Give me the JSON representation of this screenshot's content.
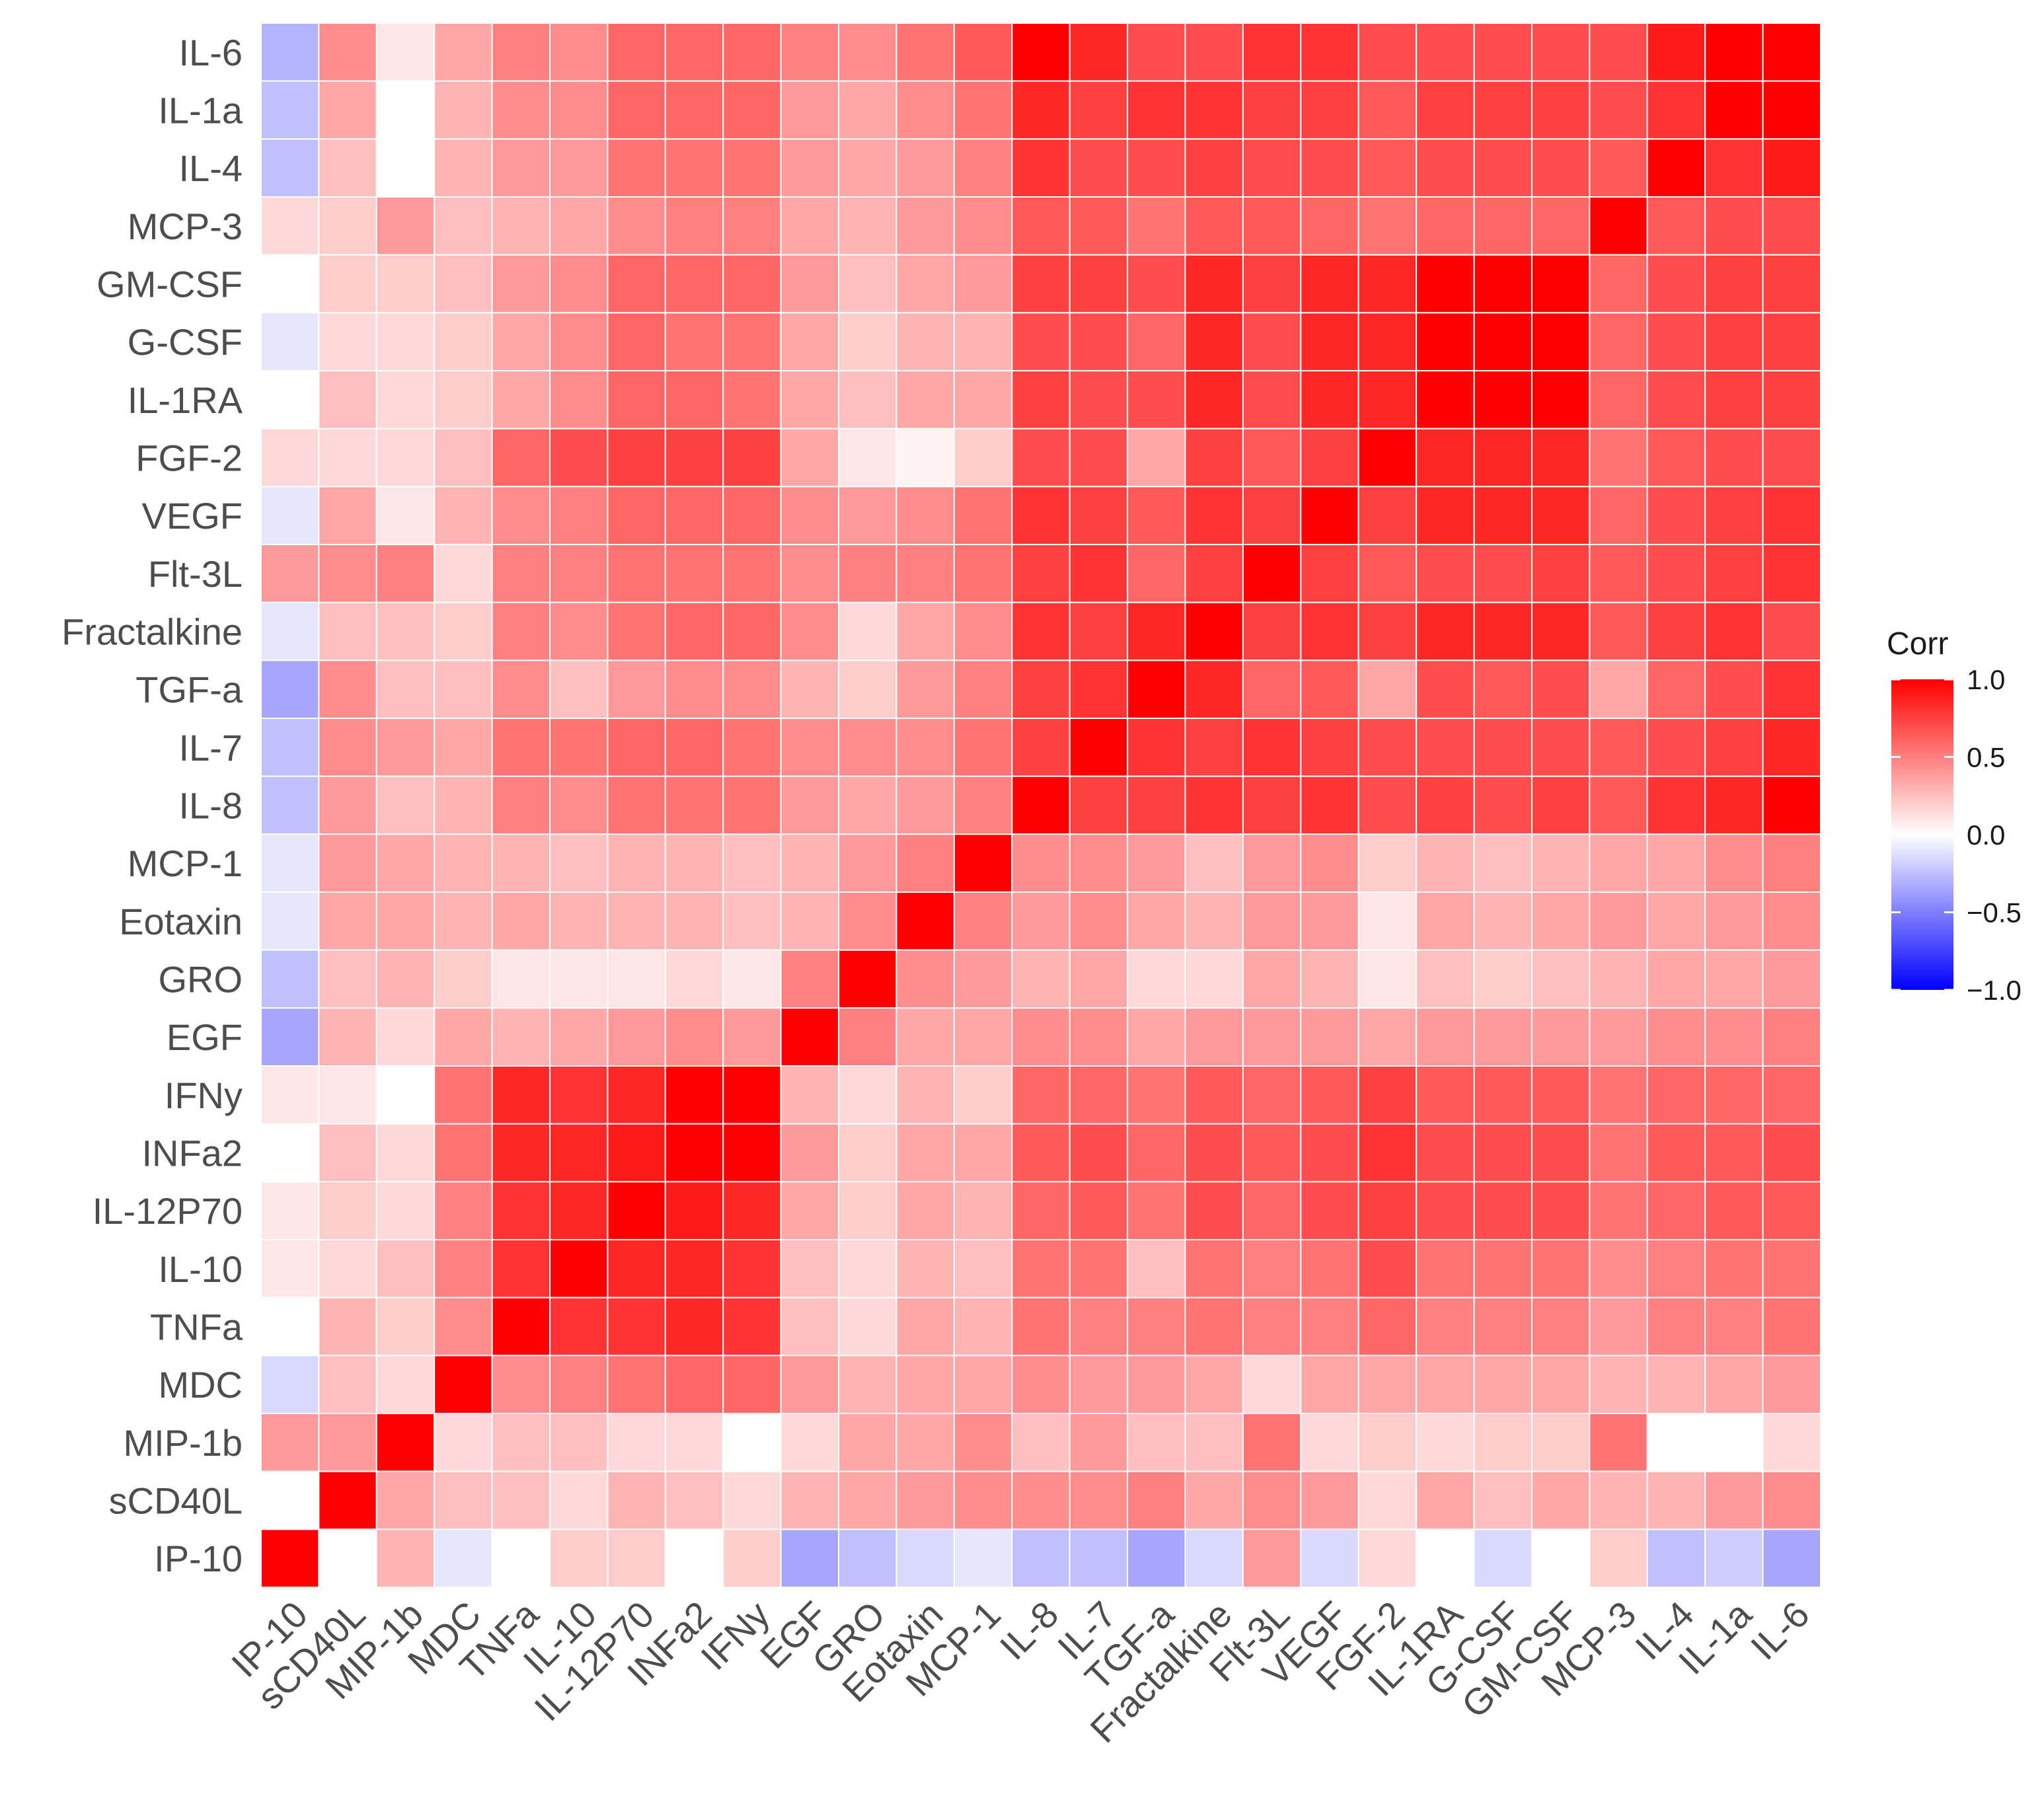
{
  "chart_data": {
    "type": "heatmap",
    "title": "",
    "xlabel": "",
    "ylabel": "",
    "x_categories": [
      "IP-10",
      "sCD40L",
      "MIP-1b",
      "MDC",
      "TNFa",
      "IL-10",
      "IL-12P70",
      "INFa2",
      "IFNy",
      "EGF",
      "GRO",
      "Eotaxin",
      "MCP-1",
      "IL-8",
      "IL-7",
      "TGF-a",
      "Fractalkine",
      "Flt-3L",
      "VEGF",
      "FGF-2",
      "IL-1RA",
      "G-CSF",
      "GM-CSF",
      "MCP-3",
      "IL-4",
      "IL-1a",
      "IL-6"
    ],
    "y_categories": [
      "IL-6",
      "IL-1a",
      "IL-4",
      "MCP-3",
      "GM-CSF",
      "G-CSF",
      "IL-1RA",
      "FGF-2",
      "VEGF",
      "Flt-3L",
      "Fractalkine",
      "TGF-a",
      "IL-7",
      "IL-8",
      "MCP-1",
      "Eotaxin",
      "GRO",
      "EGF",
      "IFNy",
      "INFa2",
      "IL-12P70",
      "IL-10",
      "TNFa",
      "MDC",
      "MIP-1b",
      "sCD40L",
      "IP-10"
    ],
    "values": [
      [
        -0.3,
        0.45,
        0.1,
        0.35,
        0.5,
        0.45,
        0.6,
        0.6,
        0.6,
        0.5,
        0.45,
        0.55,
        0.65,
        1.0,
        0.85,
        0.7,
        0.7,
        0.8,
        0.8,
        0.7,
        0.7,
        0.7,
        0.7,
        0.7,
        0.9,
        1.0,
        1.0
      ],
      [
        -0.25,
        0.35,
        0.0,
        0.3,
        0.45,
        0.45,
        0.6,
        0.6,
        0.6,
        0.4,
        0.35,
        0.45,
        0.55,
        0.85,
        0.75,
        0.8,
        0.8,
        0.75,
        0.75,
        0.65,
        0.75,
        0.75,
        0.75,
        0.7,
        0.8,
        1.0,
        1.0
      ],
      [
        -0.25,
        0.25,
        0.0,
        0.3,
        0.4,
        0.4,
        0.55,
        0.55,
        0.55,
        0.4,
        0.35,
        0.4,
        0.5,
        0.8,
        0.7,
        0.7,
        0.75,
        0.7,
        0.7,
        0.65,
        0.7,
        0.7,
        0.7,
        0.65,
        1.0,
        0.8,
        0.9
      ],
      [
        0.15,
        0.2,
        0.4,
        0.25,
        0.3,
        0.35,
        0.45,
        0.5,
        0.5,
        0.35,
        0.3,
        0.4,
        0.45,
        0.65,
        0.65,
        0.55,
        0.65,
        0.65,
        0.6,
        0.55,
        0.6,
        0.6,
        0.6,
        1.0,
        0.65,
        0.7,
        0.7
      ],
      [
        0.0,
        0.2,
        0.2,
        0.25,
        0.4,
        0.45,
        0.6,
        0.6,
        0.6,
        0.4,
        0.25,
        0.35,
        0.4,
        0.75,
        0.75,
        0.7,
        0.85,
        0.75,
        0.85,
        0.85,
        1.0,
        1.0,
        1.0,
        0.6,
        0.7,
        0.75,
        0.75
      ],
      [
        -0.1,
        0.15,
        0.15,
        0.2,
        0.35,
        0.45,
        0.6,
        0.55,
        0.55,
        0.35,
        0.2,
        0.3,
        0.3,
        0.7,
        0.7,
        0.6,
        0.85,
        0.7,
        0.85,
        0.85,
        1.0,
        1.0,
        1.0,
        0.6,
        0.7,
        0.75,
        0.75
      ],
      [
        0.0,
        0.25,
        0.15,
        0.2,
        0.35,
        0.45,
        0.6,
        0.6,
        0.55,
        0.35,
        0.25,
        0.35,
        0.35,
        0.75,
        0.7,
        0.7,
        0.85,
        0.7,
        0.85,
        0.85,
        1.0,
        1.0,
        1.0,
        0.6,
        0.7,
        0.75,
        0.75
      ],
      [
        0.15,
        0.15,
        0.15,
        0.25,
        0.6,
        0.7,
        0.75,
        0.75,
        0.75,
        0.35,
        0.1,
        0.05,
        0.2,
        0.7,
        0.7,
        0.35,
        0.75,
        0.65,
        0.75,
        1.0,
        0.85,
        0.85,
        0.85,
        0.55,
        0.65,
        0.7,
        0.7
      ],
      [
        -0.1,
        0.35,
        0.1,
        0.3,
        0.45,
        0.5,
        0.6,
        0.6,
        0.6,
        0.45,
        0.4,
        0.45,
        0.55,
        0.8,
        0.75,
        0.65,
        0.8,
        0.75,
        1.0,
        0.75,
        0.85,
        0.85,
        0.85,
        0.6,
        0.7,
        0.75,
        0.8
      ],
      [
        0.4,
        0.45,
        0.5,
        0.15,
        0.5,
        0.5,
        0.55,
        0.55,
        0.55,
        0.45,
        0.5,
        0.5,
        0.55,
        0.75,
        0.8,
        0.6,
        0.75,
        1.0,
        0.75,
        0.65,
        0.7,
        0.7,
        0.75,
        0.65,
        0.7,
        0.75,
        0.8
      ],
      [
        -0.1,
        0.25,
        0.25,
        0.2,
        0.5,
        0.45,
        0.55,
        0.6,
        0.6,
        0.45,
        0.15,
        0.35,
        0.45,
        0.8,
        0.75,
        0.85,
        1.0,
        0.75,
        0.8,
        0.75,
        0.85,
        0.85,
        0.85,
        0.65,
        0.75,
        0.8,
        0.7
      ],
      [
        -0.35,
        0.45,
        0.25,
        0.25,
        0.45,
        0.25,
        0.4,
        0.45,
        0.45,
        0.3,
        0.2,
        0.4,
        0.5,
        0.75,
        0.8,
        1.0,
        0.85,
        0.6,
        0.65,
        0.35,
        0.7,
        0.65,
        0.7,
        0.35,
        0.6,
        0.7,
        0.8
      ],
      [
        -0.25,
        0.45,
        0.4,
        0.35,
        0.55,
        0.55,
        0.6,
        0.6,
        0.55,
        0.45,
        0.45,
        0.45,
        0.55,
        0.75,
        1.0,
        0.8,
        0.75,
        0.8,
        0.75,
        0.7,
        0.7,
        0.7,
        0.7,
        0.65,
        0.7,
        0.75,
        0.85
      ],
      [
        -0.25,
        0.4,
        0.25,
        0.3,
        0.5,
        0.45,
        0.55,
        0.55,
        0.55,
        0.4,
        0.35,
        0.4,
        0.5,
        1.0,
        0.75,
        0.75,
        0.8,
        0.75,
        0.8,
        0.7,
        0.75,
        0.7,
        0.75,
        0.65,
        0.8,
        0.85,
        1.0
      ],
      [
        -0.1,
        0.4,
        0.35,
        0.3,
        0.3,
        0.25,
        0.3,
        0.3,
        0.25,
        0.3,
        0.4,
        0.5,
        1.0,
        0.45,
        0.45,
        0.4,
        0.25,
        0.4,
        0.45,
        0.2,
        0.3,
        0.25,
        0.3,
        0.35,
        0.35,
        0.45,
        0.5
      ],
      [
        -0.1,
        0.35,
        0.35,
        0.3,
        0.35,
        0.3,
        0.3,
        0.3,
        0.25,
        0.3,
        0.45,
        1.0,
        0.5,
        0.4,
        0.45,
        0.35,
        0.3,
        0.4,
        0.4,
        0.1,
        0.35,
        0.3,
        0.35,
        0.4,
        0.35,
        0.4,
        0.45
      ],
      [
        -0.25,
        0.25,
        0.3,
        0.2,
        0.1,
        0.1,
        0.1,
        0.15,
        0.1,
        0.5,
        1.0,
        0.45,
        0.4,
        0.3,
        0.35,
        0.15,
        0.15,
        0.35,
        0.3,
        0.1,
        0.25,
        0.2,
        0.25,
        0.3,
        0.35,
        0.35,
        0.4
      ],
      [
        -0.35,
        0.3,
        0.15,
        0.35,
        0.3,
        0.35,
        0.4,
        0.45,
        0.4,
        1.0,
        0.5,
        0.35,
        0.35,
        0.45,
        0.45,
        0.35,
        0.4,
        0.4,
        0.4,
        0.35,
        0.4,
        0.4,
        0.4,
        0.4,
        0.45,
        0.45,
        0.5
      ],
      [
        0.1,
        0.1,
        0.0,
        0.55,
        0.85,
        0.8,
        0.85,
        1.0,
        1.0,
        0.3,
        0.15,
        0.3,
        0.2,
        0.6,
        0.6,
        0.55,
        0.65,
        0.6,
        0.65,
        0.75,
        0.65,
        0.65,
        0.65,
        0.55,
        0.6,
        0.6,
        0.6
      ],
      [
        0.0,
        0.25,
        0.15,
        0.55,
        0.85,
        0.85,
        0.9,
        1.0,
        1.0,
        0.4,
        0.2,
        0.35,
        0.35,
        0.65,
        0.7,
        0.6,
        0.7,
        0.65,
        0.7,
        0.8,
        0.7,
        0.7,
        0.7,
        0.55,
        0.65,
        0.65,
        0.7
      ],
      [
        0.1,
        0.2,
        0.15,
        0.5,
        0.8,
        0.85,
        1.0,
        0.9,
        0.85,
        0.35,
        0.2,
        0.35,
        0.3,
        0.6,
        0.65,
        0.55,
        0.7,
        0.6,
        0.7,
        0.75,
        0.7,
        0.7,
        0.7,
        0.55,
        0.6,
        0.65,
        0.65
      ],
      [
        0.1,
        0.15,
        0.25,
        0.5,
        0.8,
        1.0,
        0.85,
        0.85,
        0.8,
        0.25,
        0.15,
        0.3,
        0.25,
        0.55,
        0.55,
        0.25,
        0.55,
        0.5,
        0.55,
        0.7,
        0.55,
        0.55,
        0.55,
        0.45,
        0.5,
        0.55,
        0.55
      ],
      [
        0.0,
        0.3,
        0.2,
        0.45,
        1.0,
        0.8,
        0.8,
        0.85,
        0.8,
        0.25,
        0.15,
        0.35,
        0.3,
        0.55,
        0.5,
        0.5,
        0.55,
        0.5,
        0.5,
        0.6,
        0.5,
        0.5,
        0.5,
        0.4,
        0.5,
        0.5,
        0.55
      ],
      [
        -0.15,
        0.25,
        0.15,
        1.0,
        0.45,
        0.5,
        0.55,
        0.6,
        0.6,
        0.4,
        0.3,
        0.35,
        0.35,
        0.45,
        0.4,
        0.4,
        0.35,
        0.15,
        0.35,
        0.35,
        0.35,
        0.35,
        0.35,
        0.3,
        0.3,
        0.35,
        0.4
      ],
      [
        0.4,
        0.4,
        1.0,
        0.15,
        0.25,
        0.25,
        0.15,
        0.15,
        0.0,
        0.15,
        0.35,
        0.35,
        0.45,
        0.25,
        0.4,
        0.25,
        0.25,
        0.55,
        0.15,
        0.2,
        0.15,
        0.2,
        0.2,
        0.55,
        0.0,
        0.0,
        0.15
      ],
      [
        0.0,
        1.0,
        0.35,
        0.25,
        0.25,
        0.15,
        0.3,
        0.25,
        0.15,
        0.3,
        0.35,
        0.4,
        0.45,
        0.45,
        0.45,
        0.5,
        0.35,
        0.45,
        0.4,
        0.15,
        0.35,
        0.25,
        0.35,
        0.3,
        0.3,
        0.4,
        0.45
      ],
      [
        1.0,
        0.0,
        0.3,
        -0.1,
        0.0,
        0.2,
        0.2,
        0.0,
        0.2,
        -0.35,
        -0.25,
        -0.15,
        -0.1,
        -0.25,
        -0.25,
        -0.35,
        -0.15,
        0.4,
        -0.15,
        0.15,
        0.0,
        -0.15,
        0.0,
        0.2,
        -0.25,
        -0.2,
        -0.35
      ]
    ],
    "scale": {
      "min": -1.0,
      "max": 1.0,
      "low_color": "#0000ff",
      "mid_color": "#ffffff",
      "high_color": "#ff0000"
    },
    "grid": true,
    "legend": {
      "title": "Corr",
      "position": "right",
      "ticks": [
        "1.0",
        "0.5",
        "0.0",
        "−0.5",
        "−1.0"
      ],
      "tick_values": [
        1.0,
        0.5,
        0.0,
        -0.5,
        -1.0
      ]
    }
  }
}
